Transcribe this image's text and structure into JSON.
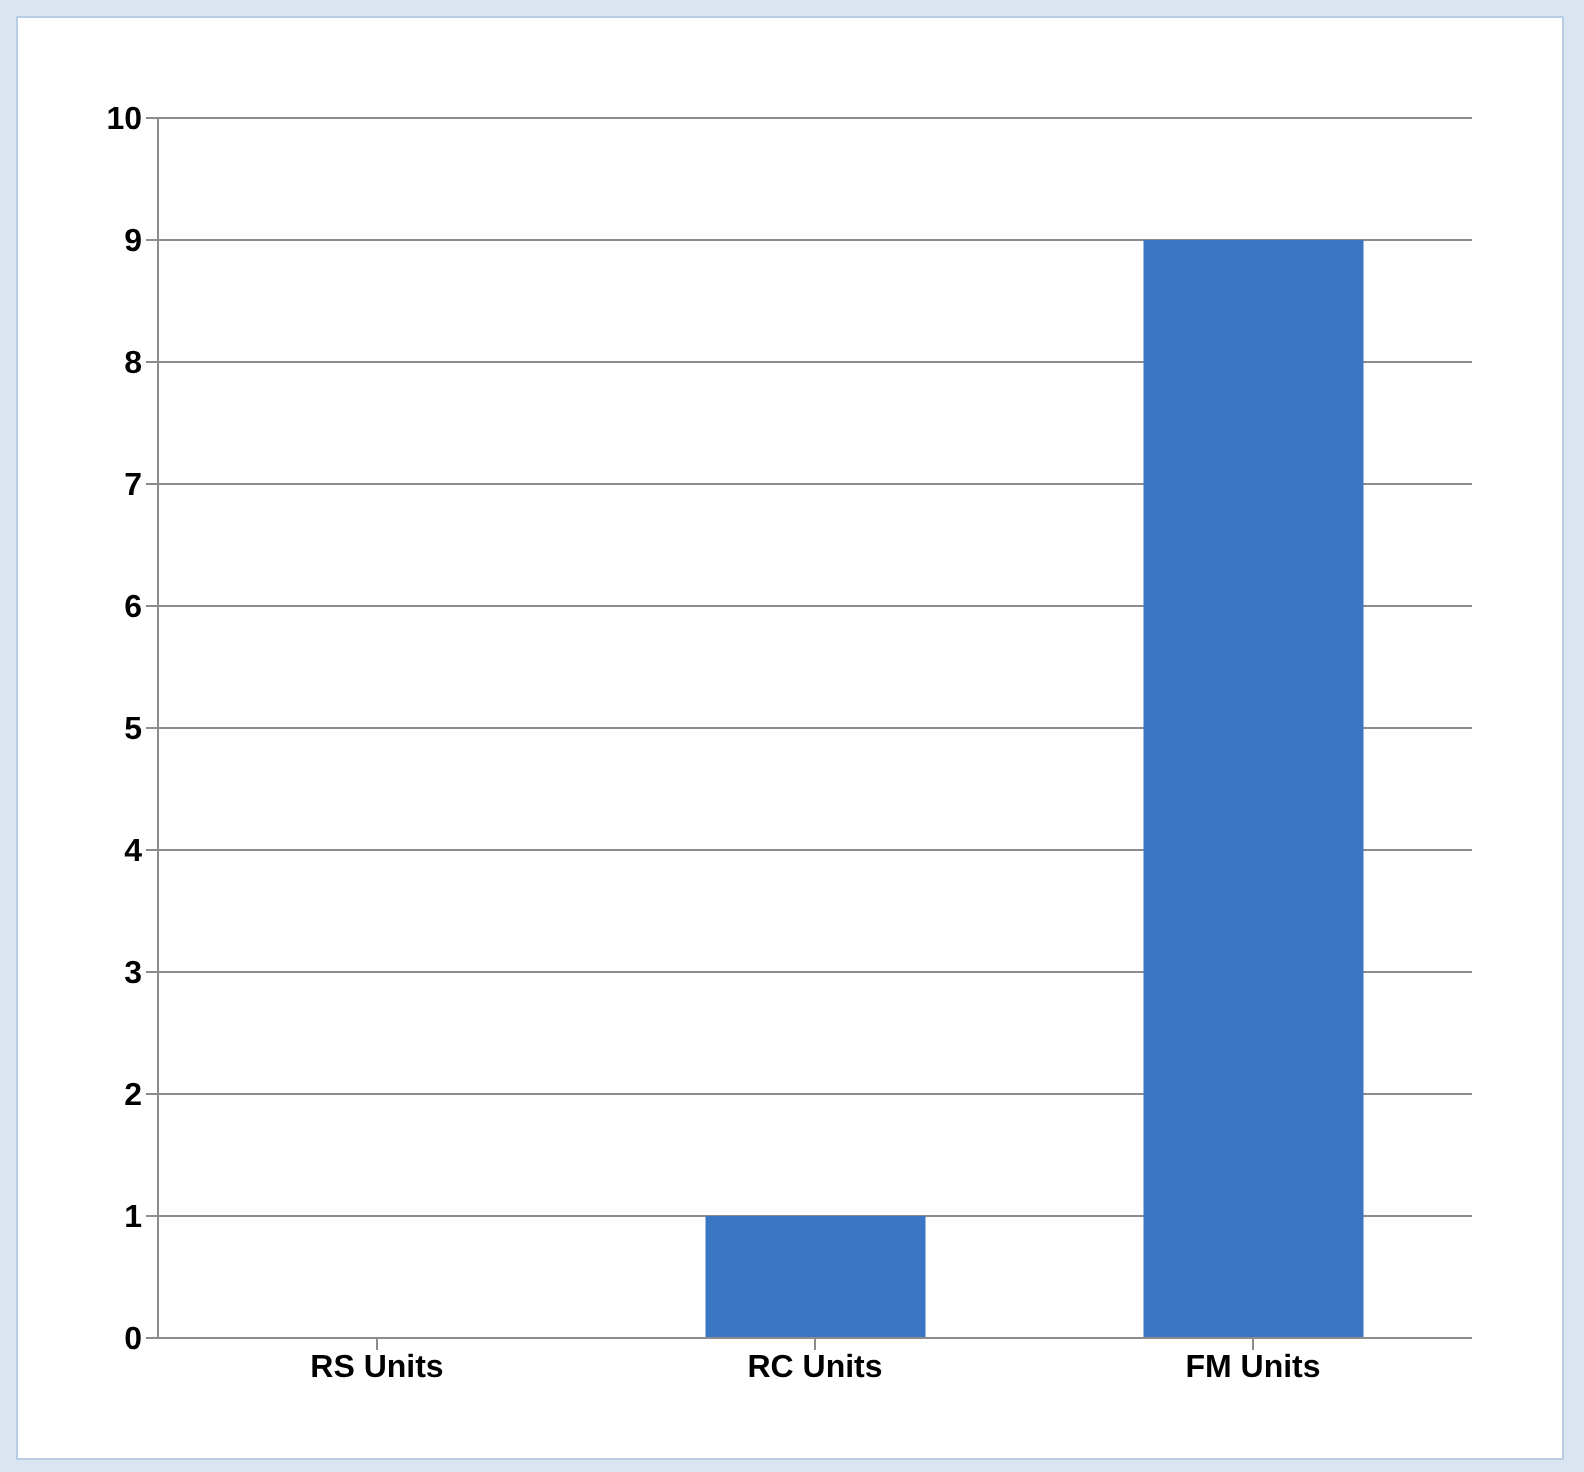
{
  "chart_data": {
    "type": "bar",
    "categories": [
      "RS Units",
      "RC Units",
      "FM Units"
    ],
    "values": [
      0,
      1,
      9
    ],
    "color": "#3b76c4",
    "ylim": [
      0,
      10
    ],
    "yticks": [
      0,
      1,
      2,
      3,
      4,
      5,
      6,
      7,
      8,
      9,
      10
    ],
    "grid": "y"
  }
}
